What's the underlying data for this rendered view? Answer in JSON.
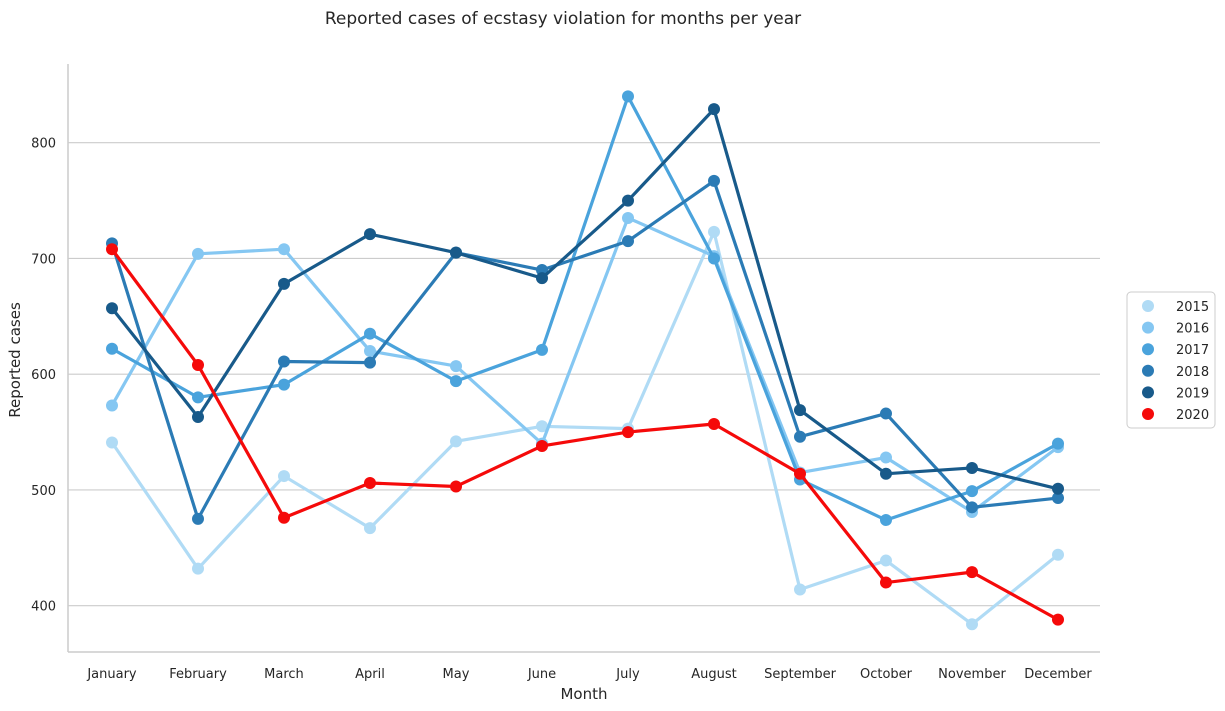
{
  "chart_data": {
    "type": "line",
    "title": "Reported cases of ecstasy violation for months per year",
    "xlabel": "Month",
    "ylabel": "Reported cases",
    "categories": [
      "January",
      "February",
      "March",
      "April",
      "May",
      "June",
      "July",
      "August",
      "September",
      "October",
      "November",
      "December"
    ],
    "ylim": [
      360,
      868
    ],
    "yticks": [
      400,
      500,
      600,
      700,
      800
    ],
    "grid": "horizontal",
    "legend_position": "right",
    "series": [
      {
        "name": "2015",
        "color": "#b0dbf5",
        "values": [
          541,
          432,
          512,
          467,
          542,
          555,
          553,
          723,
          414,
          439,
          384,
          444
        ]
      },
      {
        "name": "2016",
        "color": "#85c7f2",
        "values": [
          573,
          704,
          708,
          620,
          607,
          540,
          735,
          702,
          515,
          528,
          481,
          537
        ]
      },
      {
        "name": "2017",
        "color": "#4aa3dc",
        "values": [
          622,
          580,
          591,
          635,
          594,
          621,
          840,
          700,
          509,
          474,
          499,
          540
        ]
      },
      {
        "name": "2018",
        "color": "#2b7bb5",
        "values": [
          713,
          475,
          611,
          610,
          705,
          690,
          715,
          767,
          546,
          566,
          485,
          493
        ]
      },
      {
        "name": "2019",
        "color": "#185a8a",
        "values": [
          657,
          563,
          678,
          721,
          705,
          683,
          750,
          829,
          569,
          514,
          519,
          501
        ]
      },
      {
        "name": "2020",
        "color": "#f50a0a",
        "values": [
          708,
          608,
          476,
          506,
          503,
          538,
          550,
          557,
          514,
          420,
          429,
          388
        ]
      }
    ]
  }
}
